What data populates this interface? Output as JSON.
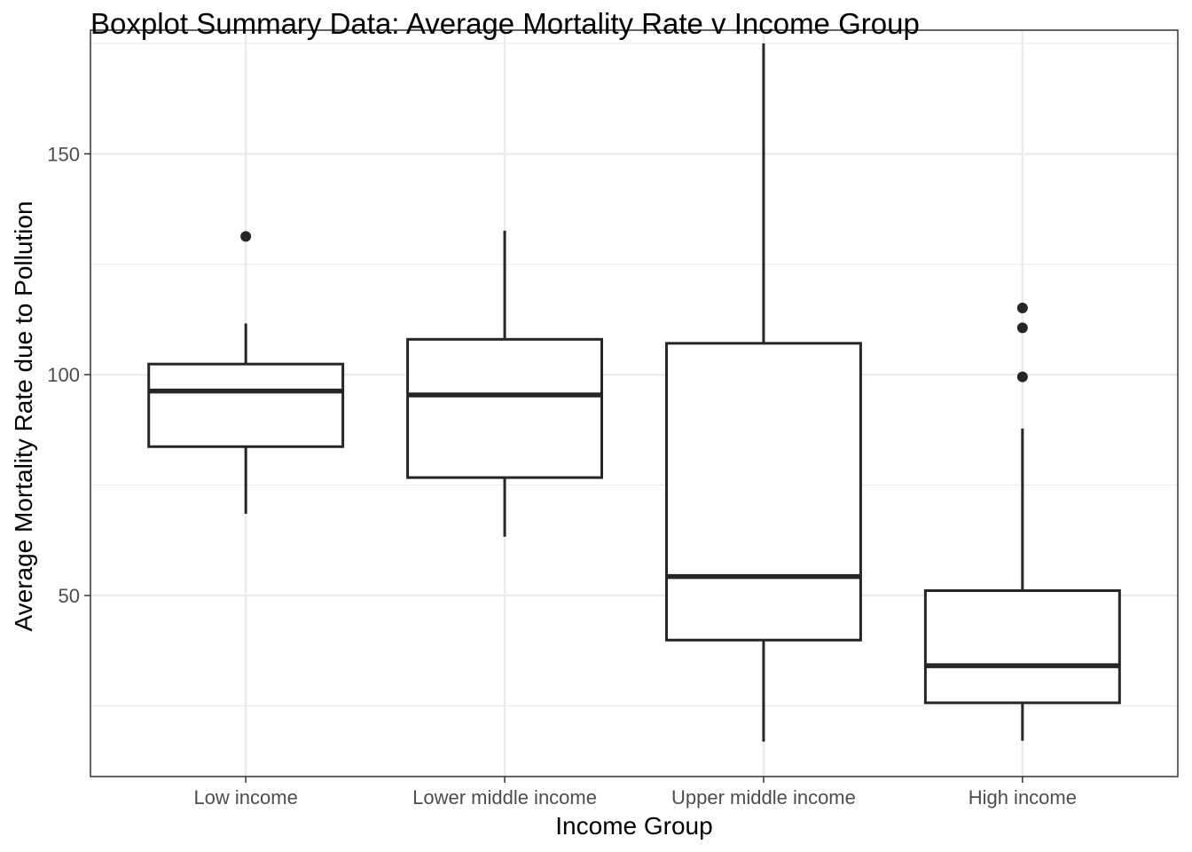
{
  "chart_data": {
    "type": "boxplot",
    "title": "Boxplot Summary Data: Average Mortality Rate v Income Group",
    "xlabel": "Income Group",
    "ylabel": "Average Mortality Rate due to Pollution",
    "categories": [
      "Low income",
      "Lower middle income",
      "Upper middle income",
      "High income"
    ],
    "y_ticks": [
      50,
      100,
      150
    ],
    "ylim": [
      9,
      178
    ],
    "grid": true,
    "legend": "none",
    "colors": {
      "box_stroke": "#262626",
      "grid": "#ebebeb",
      "panel_border": "#333333",
      "tick_label": "#4d4d4d"
    },
    "boxes": [
      {
        "category": "Low income",
        "whisker_low": 68.5,
        "q1": 83.7,
        "median": 96.3,
        "q3": 102.4,
        "whisker_high": 111.6,
        "outliers": [
          131.3
        ]
      },
      {
        "category": "Lower middle income",
        "whisker_low": 63.3,
        "q1": 76.7,
        "median": 95.4,
        "q3": 108.0,
        "whisker_high": 132.6,
        "outliers": []
      },
      {
        "category": "Upper middle income",
        "whisker_low": 16.9,
        "q1": 39.9,
        "median": 54.3,
        "q3": 107.1,
        "whisker_high": 175.0,
        "outliers": []
      },
      {
        "category": "High income",
        "whisker_low": 17.1,
        "q1": 25.7,
        "median": 34.1,
        "q3": 51.1,
        "whisker_high": 87.8,
        "outliers": [
          115.1,
          110.6,
          99.5
        ]
      }
    ]
  }
}
